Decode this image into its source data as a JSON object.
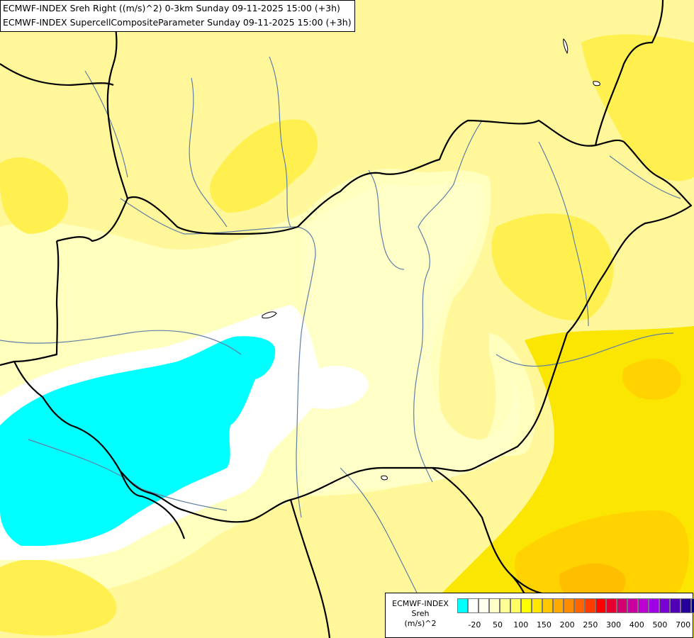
{
  "title_lines": [
    "ECMWF-INDEX Sreh Right ((m/s)^2) 0-3km Sunday 09-11-2025 15:00 (+3h)",
    "ECMWF-INDEX SupercellCompositeParameter Sunday 09-11-2025 15:00 (+3h)"
  ],
  "legend": {
    "title_lines": [
      "ECMWF-INDEX",
      "Sreh",
      "(m/s)^2"
    ],
    "colors": [
      "#00ffff",
      "#ffffff",
      "#fffff0",
      "#ffffc8",
      "#ffff96",
      "#ffff64",
      "#ffff00",
      "#ffe600",
      "#ffc800",
      "#ffaa00",
      "#ff8c00",
      "#ff6400",
      "#ff3c00",
      "#ff0000",
      "#e60032",
      "#d2006e",
      "#c800a0",
      "#be00d2",
      "#a000e6",
      "#7800d2",
      "#5000b4",
      "#28009b",
      "#000080"
    ],
    "ticks": [
      {
        "label": "-20",
        "slot": 1
      },
      {
        "label": "50",
        "slot": 3
      },
      {
        "label": "100",
        "slot": 5
      },
      {
        "label": "150",
        "slot": 7
      },
      {
        "label": "200",
        "slot": 9
      },
      {
        "label": "250",
        "slot": 11
      },
      {
        "label": "300",
        "slot": 13
      },
      {
        "label": "400",
        "slot": 15
      },
      {
        "label": "500",
        "slot": 17
      },
      {
        "label": "700",
        "slot": 19
      }
    ]
  },
  "fill_colors": {
    "base": "#fffaa8",
    "light": "#ffffc0",
    "mid": "#ffff64",
    "strong": "#fbe400",
    "deep": "#ffd000",
    "orange": "#ffb900",
    "white": "#ffffff",
    "cyan": "#00ffff",
    "border": "#000000",
    "river": "#6080a0"
  }
}
